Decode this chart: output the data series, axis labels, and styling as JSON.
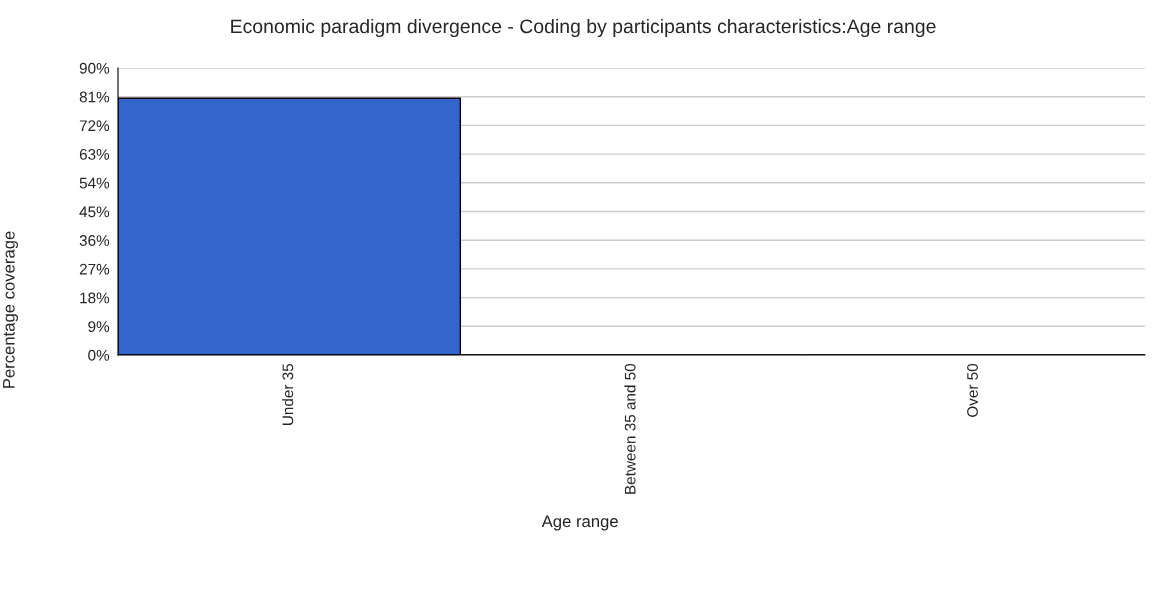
{
  "chart_data": {
    "type": "bar",
    "title": "Economic paradigm divergence - Coding by participants characteristics:Age range",
    "xlabel": "Age range",
    "ylabel": "Percentage coverage",
    "categories": [
      "Under 35",
      "Between 35 and 50",
      "Over 50"
    ],
    "values": [
      80.5,
      0,
      0
    ],
    "color": "#3366cc",
    "ylim": [
      0,
      90
    ],
    "yticks": [
      {
        "value": 0,
        "label": "0%"
      },
      {
        "value": 9,
        "label": "9%"
      },
      {
        "value": 18,
        "label": "18%"
      },
      {
        "value": 27,
        "label": "27%"
      },
      {
        "value": 36,
        "label": "36%"
      },
      {
        "value": 45,
        "label": "45%"
      },
      {
        "value": 54,
        "label": "54%"
      },
      {
        "value": 63,
        "label": "63%"
      },
      {
        "value": 72,
        "label": "72%"
      },
      {
        "value": 81,
        "label": "81%"
      },
      {
        "value": 90,
        "label": "90%"
      }
    ],
    "grid": "y",
    "legend": false
  }
}
